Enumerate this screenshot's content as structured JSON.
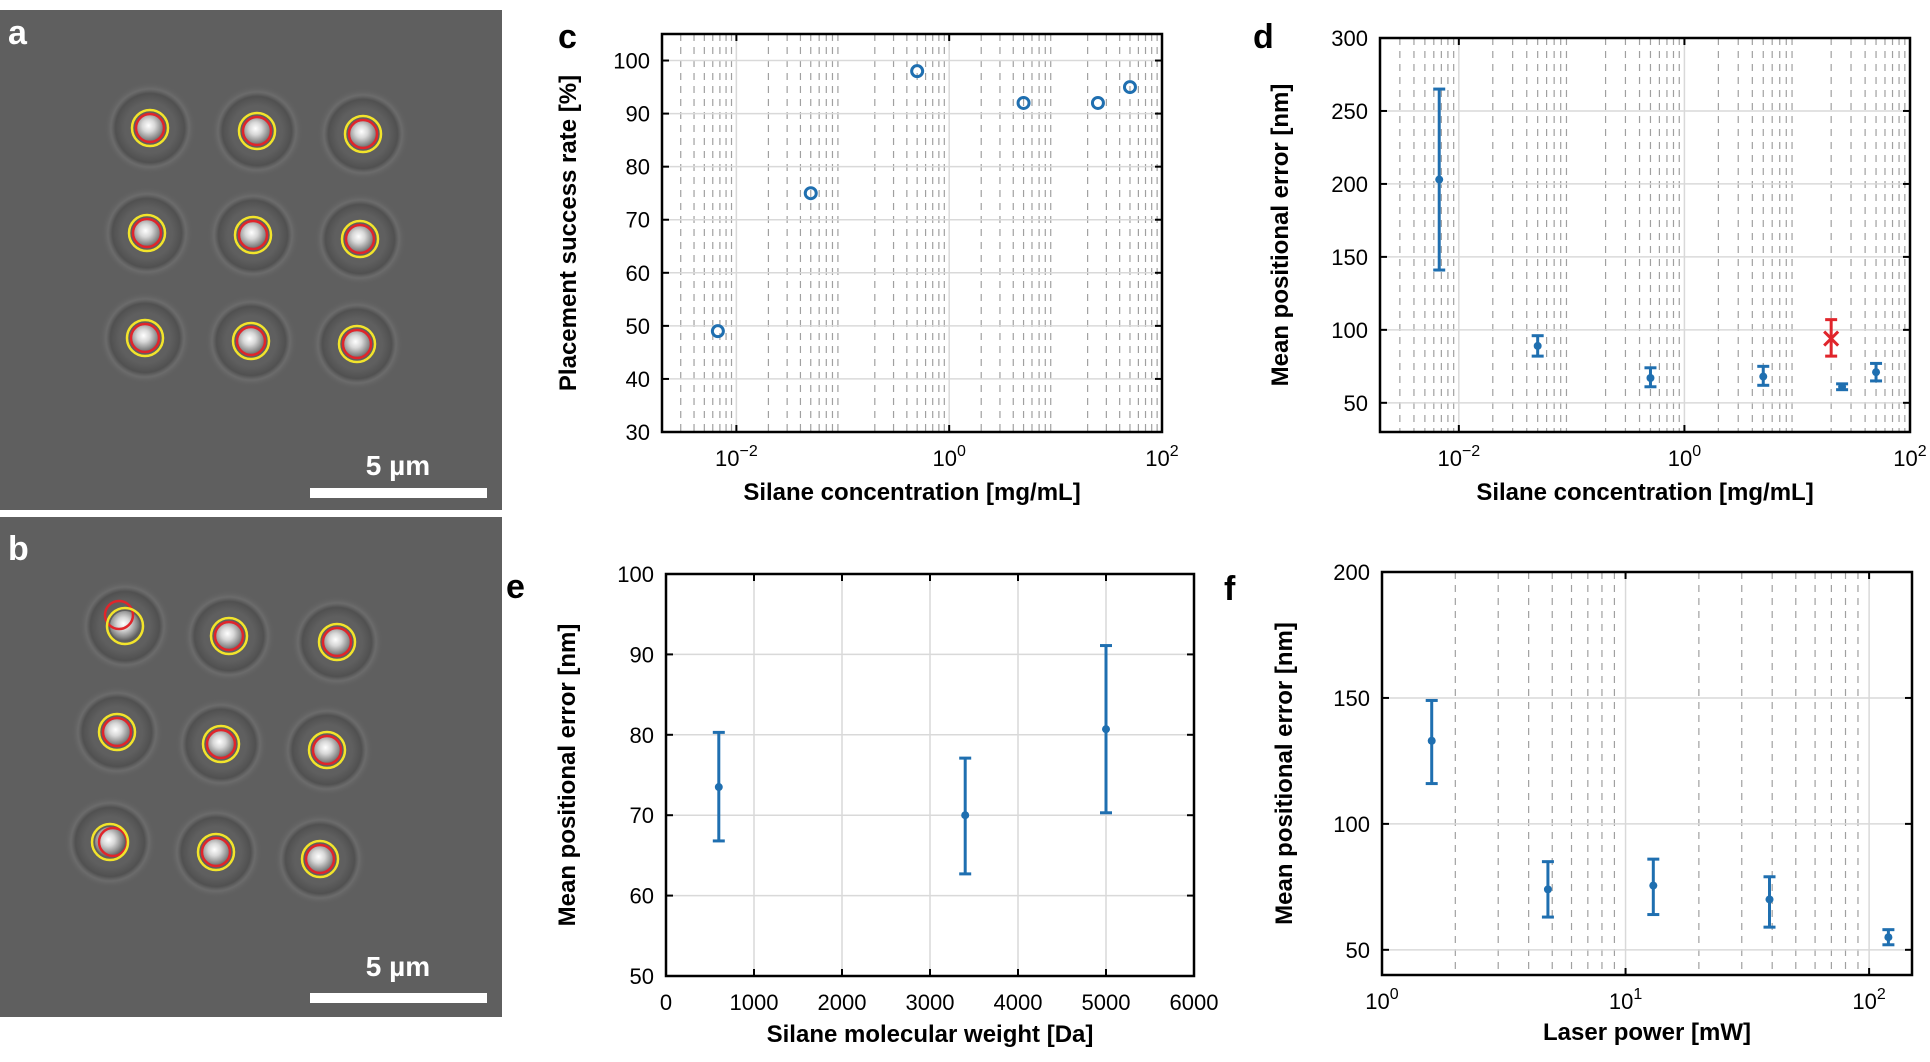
{
  "micrographs": [
    {
      "letter": "a",
      "scalebar_label": "5 µm"
    },
    {
      "letter": "b",
      "scalebar_label": "5 µm"
    }
  ],
  "colors": {
    "marker": "#1f6fb0",
    "outlier": "#e0252b",
    "grid_major": "#d9d9d9",
    "grid_minor": "#a0a0a0",
    "micrograph_bg": "#5f5f5f",
    "detected_circle": "#f2e42b",
    "target_circle": "#e0252b"
  },
  "chart_data": [
    {
      "letter": "c",
      "type": "scatter",
      "xscale": "log",
      "xlim": [
        0.002,
        100
      ],
      "ylim": [
        30,
        105
      ],
      "xlabel": "Silane concentration [mg/mL]",
      "ylabel": "Placement success rate [%]",
      "xticks": [
        {
          "v": 0.01,
          "b": "10",
          "e": "−2"
        },
        {
          "v": 1,
          "b": "10",
          "e": "0"
        },
        {
          "v": 100,
          "b": "10",
          "e": "2"
        }
      ],
      "yticks": [
        30,
        40,
        50,
        60,
        70,
        80,
        90,
        100
      ],
      "grid": true,
      "marker": "open-circle",
      "series": [
        {
          "x": [
            0.0067,
            0.05,
            0.5,
            5,
            25,
            50
          ],
          "y": [
            49,
            75,
            98,
            92,
            92,
            95
          ]
        }
      ]
    },
    {
      "letter": "d",
      "type": "scatter",
      "xscale": "log",
      "xlim": [
        0.002,
        100
      ],
      "ylim": [
        30,
        300
      ],
      "xlabel": "Silane concentration [mg/mL]",
      "ylabel": "Mean positional error [nm]",
      "xticks": [
        {
          "v": 0.01,
          "b": "10",
          "e": "−2"
        },
        {
          "v": 1,
          "b": "10",
          "e": "0"
        },
        {
          "v": 100,
          "b": "10",
          "e": "2"
        }
      ],
      "yticks": [
        50,
        100,
        150,
        200,
        250,
        300
      ],
      "grid": true,
      "marker": "dot-errorbar",
      "series": [
        {
          "x": [
            0.0067,
            0.05,
            0.5,
            5,
            25,
            50
          ],
          "y": [
            203,
            89,
            67,
            68,
            61,
            71
          ],
          "err_low": [
            141,
            82,
            61,
            62,
            59,
            65
          ],
          "err_high": [
            265,
            96,
            74,
            75,
            63,
            77
          ]
        }
      ],
      "outlier": {
        "x": 20,
        "y": 94,
        "err_low": 82,
        "err_high": 107
      }
    },
    {
      "letter": "e",
      "type": "scatter",
      "xscale": "linear",
      "xlim": [
        0,
        6000
      ],
      "ylim": [
        50,
        100
      ],
      "xlabel": "Silane molecular weight [Da]",
      "ylabel": "Mean positional error [nm]",
      "xticks": [
        0,
        1000,
        2000,
        3000,
        4000,
        5000,
        6000
      ],
      "yticks": [
        50,
        60,
        70,
        80,
        90,
        100
      ],
      "grid": true,
      "marker": "dot-errorbar",
      "series": [
        {
          "x": [
            600,
            3400,
            5000
          ],
          "y": [
            73.5,
            70,
            80.7
          ],
          "err_low": [
            66.8,
            62.7,
            70.3
          ],
          "err_high": [
            80.3,
            77.1,
            91.1
          ]
        }
      ]
    },
    {
      "letter": "f",
      "type": "scatter",
      "xscale": "log",
      "xlim": [
        1,
        150
      ],
      "ylim": [
        40,
        200
      ],
      "xlabel": "Laser power [mW]",
      "ylabel": "Mean positional error [nm]",
      "xticks": [
        {
          "v": 1,
          "b": "10",
          "e": "0"
        },
        {
          "v": 10,
          "b": "10",
          "e": "1"
        },
        {
          "v": 100,
          "b": "10",
          "e": "2"
        }
      ],
      "yticks": [
        50,
        100,
        150,
        200
      ],
      "grid": true,
      "marker": "dot-errorbar",
      "series": [
        {
          "x": [
            1.6,
            4.8,
            13,
            39,
            120
          ],
          "y": [
            133,
            74,
            75.5,
            70,
            55
          ],
          "err_low": [
            116,
            63,
            64,
            59,
            52
          ],
          "err_high": [
            149,
            85,
            86,
            79,
            58
          ]
        }
      ]
    }
  ]
}
